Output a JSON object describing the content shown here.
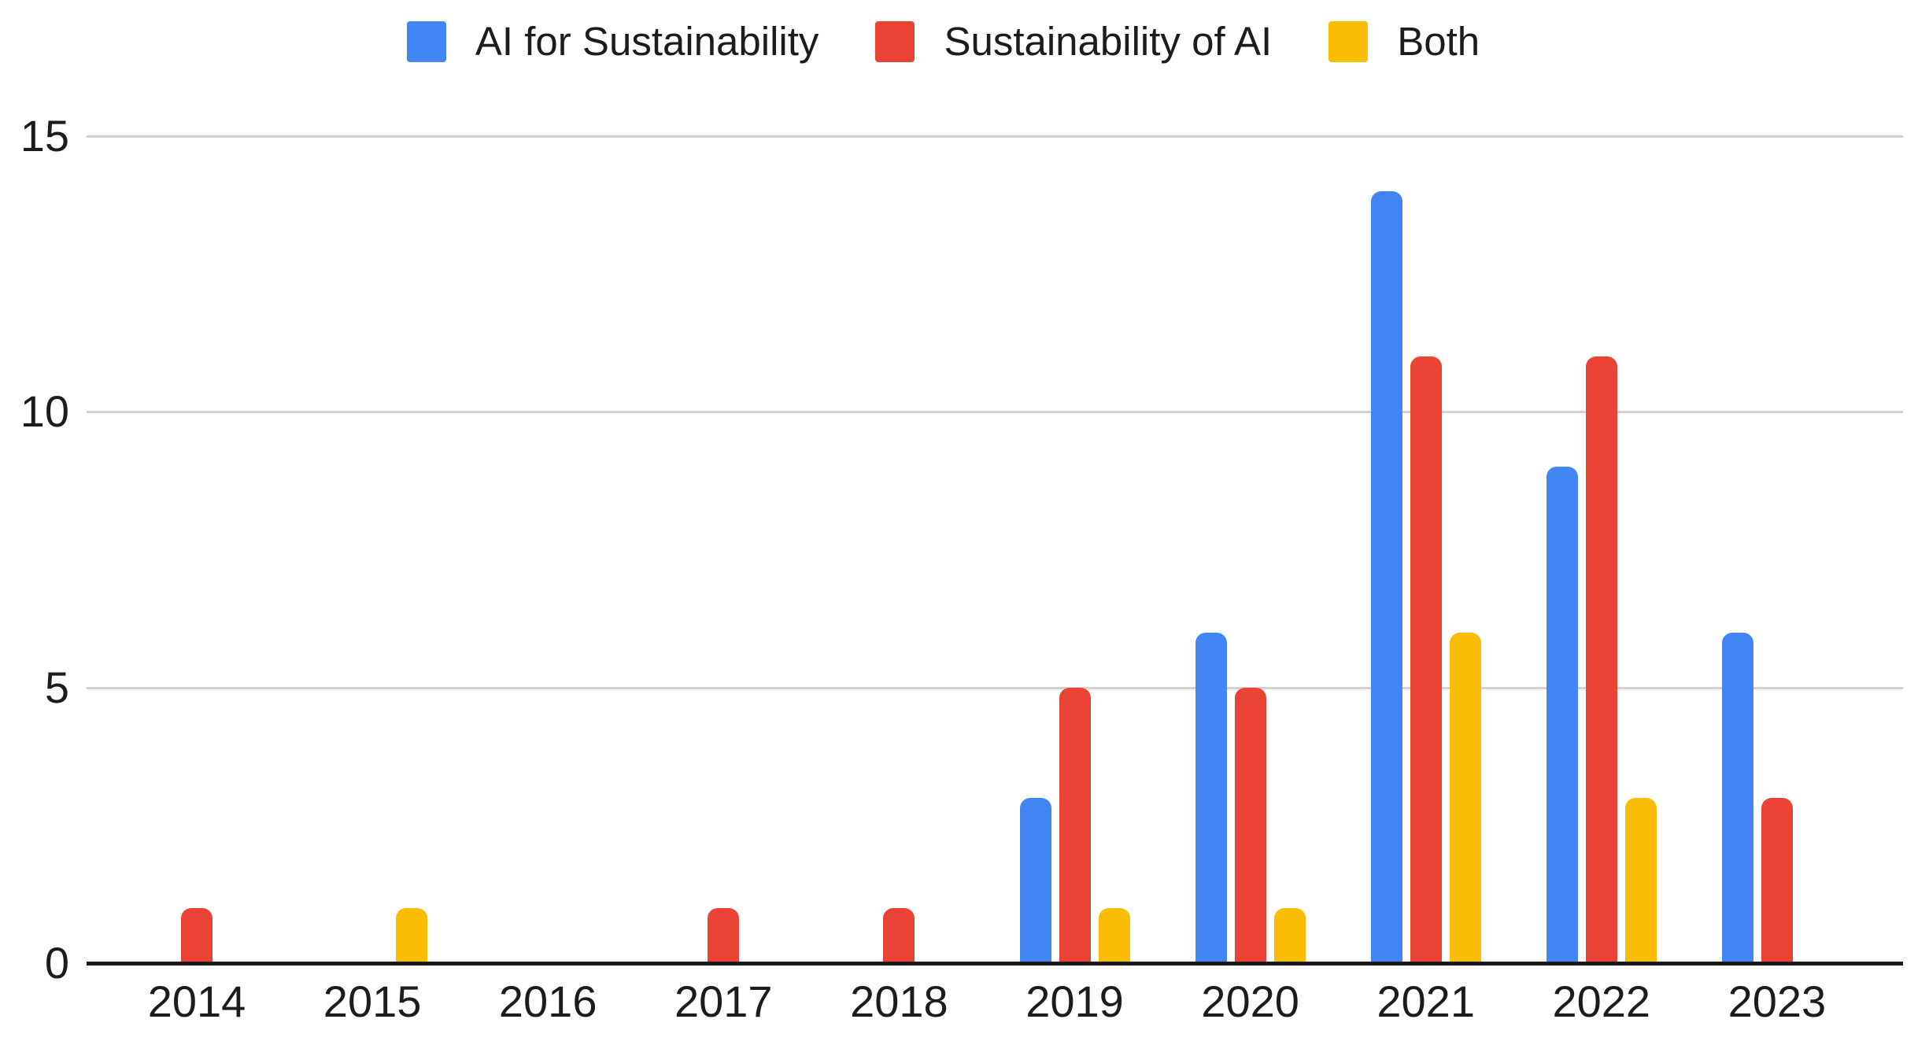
{
  "chart_data": {
    "type": "bar",
    "title": "",
    "xlabel": "",
    "ylabel": "",
    "categories": [
      "2014",
      "2015",
      "2016",
      "2017",
      "2018",
      "2019",
      "2020",
      "2021",
      "2022",
      "2023"
    ],
    "series": [
      {
        "name": "AI for Sustainability",
        "color": "#4285F4",
        "values": [
          0,
          0,
          0,
          0,
          0,
          3,
          6,
          14,
          9,
          6
        ]
      },
      {
        "name": "Sustainability of AI",
        "color": "#EA4335",
        "values": [
          1,
          0,
          0,
          1,
          1,
          5,
          5,
          11,
          11,
          3
        ]
      },
      {
        "name": "Both",
        "color": "#FBBC04",
        "values": [
          0,
          1,
          0,
          0,
          0,
          1,
          1,
          6,
          3,
          0
        ]
      }
    ],
    "ylim": [
      0,
      15
    ],
    "yticks": [
      0,
      5,
      10,
      15
    ],
    "grid": "horizontal-only",
    "legend_position": "top-center",
    "axis_color": "#1a1a1a",
    "gridline_color": "#d2d2d2",
    "label_color": "#1c1c1c",
    "background": "#ffffff"
  }
}
